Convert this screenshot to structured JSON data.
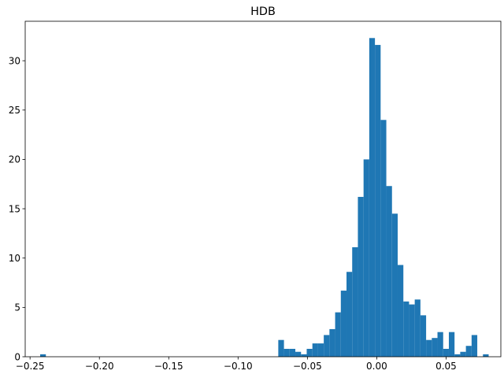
{
  "chart_data": {
    "type": "bar",
    "title": "HDB",
    "xlabel": "",
    "ylabel": "",
    "xlim": [
      -0.2535,
      0.0895
    ],
    "ylim": [
      0,
      34.0
    ],
    "x_ticks": [
      -0.25,
      -0.2,
      -0.15,
      -0.1,
      -0.05,
      0.0,
      0.05
    ],
    "x_tick_labels": [
      "−0.25",
      "−0.20",
      "−0.15",
      "−0.10",
      "−0.05",
      "0.00",
      "0.05"
    ],
    "y_ticks": [
      0,
      5,
      10,
      15,
      20,
      25,
      30
    ],
    "y_tick_labels": [
      "0",
      "5",
      "10",
      "15",
      "20",
      "25",
      "30"
    ],
    "grid": false,
    "bar_color": "#1f77b4",
    "bins": [
      {
        "x0": -0.2427,
        "x1": -0.2386,
        "value": 0.25
      },
      {
        "x0": -0.071,
        "x1": -0.0669,
        "value": 1.7
      },
      {
        "x0": -0.0669,
        "x1": -0.0628,
        "value": 0.8
      },
      {
        "x0": -0.0628,
        "x1": -0.0587,
        "value": 0.8
      },
      {
        "x0": -0.0587,
        "x1": -0.0546,
        "value": 0.5
      },
      {
        "x0": -0.0546,
        "x1": -0.0505,
        "value": 0.25
      },
      {
        "x0": -0.0505,
        "x1": -0.0464,
        "value": 0.8
      },
      {
        "x0": -0.0464,
        "x1": -0.0423,
        "value": 1.35
      },
      {
        "x0": -0.0423,
        "x1": -0.0382,
        "value": 1.35
      },
      {
        "x0": -0.0382,
        "x1": -0.0341,
        "value": 2.2
      },
      {
        "x0": -0.0341,
        "x1": -0.03,
        "value": 2.8
      },
      {
        "x0": -0.03,
        "x1": -0.0259,
        "value": 4.5
      },
      {
        "x0": -0.0259,
        "x1": -0.0218,
        "value": 6.7
      },
      {
        "x0": -0.0218,
        "x1": -0.0177,
        "value": 8.6
      },
      {
        "x0": -0.0177,
        "x1": -0.0136,
        "value": 11.1
      },
      {
        "x0": -0.0136,
        "x1": -0.0095,
        "value": 16.2
      },
      {
        "x0": -0.0095,
        "x1": -0.0054,
        "value": 20.0
      },
      {
        "x0": -0.0054,
        "x1": -0.0013,
        "value": 32.3
      },
      {
        "x0": -0.0013,
        "x1": 0.0028,
        "value": 31.6
      },
      {
        "x0": 0.0028,
        "x1": 0.0069,
        "value": 24.0
      },
      {
        "x0": 0.0069,
        "x1": 0.011,
        "value": 17.3
      },
      {
        "x0": 0.011,
        "x1": 0.0151,
        "value": 14.5
      },
      {
        "x0": 0.0151,
        "x1": 0.0192,
        "value": 9.3
      },
      {
        "x0": 0.0192,
        "x1": 0.0233,
        "value": 5.6
      },
      {
        "x0": 0.0233,
        "x1": 0.0274,
        "value": 5.3
      },
      {
        "x0": 0.0274,
        "x1": 0.0315,
        "value": 5.8
      },
      {
        "x0": 0.0315,
        "x1": 0.0356,
        "value": 4.2
      },
      {
        "x0": 0.0356,
        "x1": 0.0397,
        "value": 1.7
      },
      {
        "x0": 0.0397,
        "x1": 0.0438,
        "value": 1.9
      },
      {
        "x0": 0.0438,
        "x1": 0.0479,
        "value": 2.5
      },
      {
        "x0": 0.0479,
        "x1": 0.052,
        "value": 0.8
      },
      {
        "x0": 0.052,
        "x1": 0.0561,
        "value": 2.5
      },
      {
        "x0": 0.0561,
        "x1": 0.0602,
        "value": 0.25
      },
      {
        "x0": 0.0602,
        "x1": 0.0643,
        "value": 0.5
      },
      {
        "x0": 0.0643,
        "x1": 0.0684,
        "value": 1.1
      },
      {
        "x0": 0.0684,
        "x1": 0.0725,
        "value": 2.2
      },
      {
        "x0": 0.0766,
        "x1": 0.0807,
        "value": 0.25
      }
    ]
  }
}
